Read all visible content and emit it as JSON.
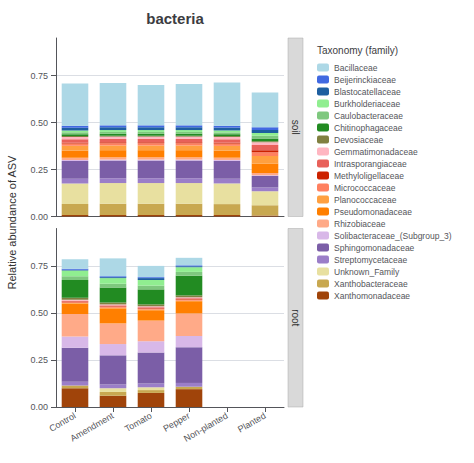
{
  "chart_data": [
    {
      "type": "bar",
      "title": "bacteria",
      "subtitle": "soil",
      "ylabel": "Relative abundance of ASV",
      "annotations": [
        "Taxonomy (family)"
      ],
      "legend": "right",
      "stacked": true,
      "grid": true,
      "tick_labels": "y",
      "categories": [
        "Control",
        "Amendment",
        "Tomato",
        "Pepper",
        "Non-planted",
        "Planted"
      ],
      "ylim": [
        0,
        0.95
      ],
      "yticks": [
        {
          "value": 0,
          "label": "0.00"
        },
        0.25,
        {
          "value": 0.5,
          "label": "0.50"
        },
        0.75
      ],
      "series": [
        {
          "name": "Bacillaceae",
          "color": "#ADD8E6",
          "values": [
            0.225,
            0.225,
            0.215,
            0.22,
            0.23,
            0.185
          ]
        },
        {
          "name": "Beijerinckiaceae",
          "color": "#4169E1",
          "values": [
            0.01,
            0.01,
            0.01,
            0.01,
            0.01,
            0.015
          ]
        },
        {
          "name": "Blastocatellaceae",
          "color": "#1E5FA0",
          "values": [
            0.015,
            0.015,
            0.015,
            0.015,
            0.015,
            0.015
          ]
        },
        {
          "name": "Burkholderiaceae",
          "color": "#90EE90",
          "values": [
            0.01,
            0.01,
            0.01,
            0.01,
            0.01,
            0.015
          ]
        },
        {
          "name": "Caulobacteraceae",
          "color": "#7EC87E",
          "values": [
            0.01,
            0.01,
            0.01,
            0.01,
            0.01,
            0.015
          ]
        },
        {
          "name": "Chitinophagaceae",
          "color": "#228B22",
          "values": [
            0.01,
            0.01,
            0.01,
            0.01,
            0.01,
            0.015
          ]
        },
        {
          "name": "Devosiaceae",
          "color": "#808040",
          "values": [
            0.005,
            0.005,
            0.005,
            0.005,
            0.005,
            0.005
          ]
        },
        {
          "name": "Gemmatimonadaceae",
          "color": "#FFB6C1",
          "values": [
            0.012,
            0.012,
            0.012,
            0.012,
            0.012,
            0.015
          ]
        },
        {
          "name": "Intrasporangiaceae",
          "color": "#E8615A",
          "values": [
            0.018,
            0.018,
            0.018,
            0.018,
            0.018,
            0.028
          ]
        },
        {
          "name": "Methyloligellaceae",
          "color": "#CC2200",
          "values": [
            0.005,
            0.005,
            0.005,
            0.005,
            0.005,
            0.01
          ]
        },
        {
          "name": "Micrococcaceae",
          "color": "#FF8060",
          "values": [
            0.012,
            0.012,
            0.012,
            0.012,
            0.012,
            0.02
          ]
        },
        {
          "name": "Planococcaceae",
          "color": "#FFA040",
          "values": [
            0.025,
            0.025,
            0.025,
            0.025,
            0.025,
            0.04
          ]
        },
        {
          "name": "Pseudomonadaceae",
          "color": "#FF7F00",
          "values": [
            0.038,
            0.038,
            0.038,
            0.038,
            0.038,
            0.05
          ]
        },
        {
          "name": "Rhizobiaceae",
          "color": "#FFAA88",
          "values": [
            0.012,
            0.012,
            0.012,
            0.012,
            0.012,
            0.012
          ]
        },
        {
          "name": "Solibacteraceae_(Subgroup_3)",
          "color": "#D8B8E8",
          "values": [
            0.005,
            0.005,
            0.005,
            0.005,
            0.005,
            0.005
          ]
        },
        {
          "name": "Sphingomonadaceae",
          "color": "#7B5EA7",
          "values": [
            0.095,
            0.095,
            0.095,
            0.095,
            0.095,
            0.06
          ]
        },
        {
          "name": "Streptomycetaceae",
          "color": "#9B7EC8",
          "values": [
            0.025,
            0.025,
            0.025,
            0.025,
            0.025,
            0.02
          ]
        },
        {
          "name": "Unknown_Family",
          "color": "#E8E0A0",
          "values": [
            0.11,
            0.11,
            0.11,
            0.11,
            0.11,
            0.075
          ]
        },
        {
          "name": "Xanthobacteraceae",
          "color": "#C8A850",
          "values": [
            0.058,
            0.06,
            0.06,
            0.06,
            0.058,
            0.055
          ]
        },
        {
          "name": "Xanthomonadaceae",
          "color": "#A0440A",
          "values": [
            0.008,
            0.008,
            0.008,
            0.008,
            0.008,
            0.005
          ]
        }
      ]
    },
    {
      "type": "bar",
      "subtitle": "root",
      "stacked": true,
      "grid": true,
      "categories": [
        "Control",
        "Amendment",
        "Tomato",
        "Pepper",
        "Non-planted",
        "Planted"
      ],
      "ylim": [
        0,
        0.95
      ],
      "yticks": [
        {
          "value": 0,
          "label": "0.00"
        },
        0.25,
        {
          "value": 0.5,
          "label": "0.50"
        },
        0.75
      ],
      "series": [
        {
          "name": "Bacillaceae",
          "color": "#ADD8E6",
          "values": [
            0.05,
            0.095,
            0.06,
            0.04,
            0.0,
            0.0
          ]
        },
        {
          "name": "Beijerinckiaceae",
          "color": "#4169E1",
          "values": [
            0.005,
            0.005,
            0.005,
            0.005,
            0.0,
            0.0
          ]
        },
        {
          "name": "Blastocatellaceae",
          "color": "#1E5FA0",
          "values": [
            0.005,
            0.005,
            0.01,
            0.005,
            0.0,
            0.0
          ]
        },
        {
          "name": "Burkholderiaceae",
          "color": "#90EE90",
          "values": [
            0.03,
            0.03,
            0.03,
            0.025,
            0.0,
            0.0
          ]
        },
        {
          "name": "Caulobacteraceae",
          "color": "#7EC87E",
          "values": [
            0.02,
            0.02,
            0.02,
            0.02,
            0.0,
            0.0
          ]
        },
        {
          "name": "Chitinophagaceae",
          "color": "#228B22",
          "values": [
            0.095,
            0.08,
            0.08,
            0.105,
            0.0,
            0.0
          ]
        },
        {
          "name": "Devosiaceae",
          "color": "#808040",
          "values": [
            0.01,
            0.01,
            0.01,
            0.01,
            0.0,
            0.0
          ]
        },
        {
          "name": "Gemmatimonadaceae",
          "color": "#FFB6C1",
          "values": [
            0.005,
            0.005,
            0.005,
            0.005,
            0.0,
            0.0
          ]
        },
        {
          "name": "Intrasporangiaceae",
          "color": "#E8615A",
          "values": [
            0.005,
            0.005,
            0.005,
            0.005,
            0.0,
            0.0
          ]
        },
        {
          "name": "Methyloligellaceae",
          "color": "#CC2200",
          "values": [
            0.003,
            0.003,
            0.003,
            0.003,
            0.0,
            0.0
          ]
        },
        {
          "name": "Micrococcaceae",
          "color": "#FF8060",
          "values": [
            0.005,
            0.005,
            0.005,
            0.005,
            0.0,
            0.0
          ]
        },
        {
          "name": "Planococcaceae",
          "color": "#FFA040",
          "values": [
            0.003,
            0.003,
            0.003,
            0.003,
            0.0,
            0.0
          ]
        },
        {
          "name": "Pseudomonadaceae",
          "color": "#FF7F00",
          "values": [
            0.055,
            0.08,
            0.055,
            0.065,
            0.0,
            0.0
          ]
        },
        {
          "name": "Rhizobiaceae",
          "color": "#FFAA88",
          "values": [
            0.12,
            0.11,
            0.11,
            0.12,
            0.0,
            0.0
          ]
        },
        {
          "name": "Solibacteraceae_(Subgroup_3)",
          "color": "#D8B8E8",
          "values": [
            0.06,
            0.06,
            0.06,
            0.06,
            0.0,
            0.0
          ]
        },
        {
          "name": "Sphingomonadaceae",
          "color": "#7B5EA7",
          "values": [
            0.18,
            0.155,
            0.165,
            0.19,
            0.0,
            0.0
          ]
        },
        {
          "name": "Streptomycetaceae",
          "color": "#9B7EC8",
          "values": [
            0.02,
            0.02,
            0.02,
            0.02,
            0.0,
            0.0
          ]
        },
        {
          "name": "Unknown_Family",
          "color": "#E8E0A0",
          "values": [
            0.0,
            0.02,
            0.015,
            0.0,
            0.0,
            0.0
          ]
        },
        {
          "name": "Xanthobacteraceae",
          "color": "#C8A850",
          "values": [
            0.015,
            0.02,
            0.015,
            0.013,
            0.0,
            0.0
          ]
        },
        {
          "name": "Xanthomonadaceae",
          "color": "#A0440A",
          "values": [
            0.1,
            0.06,
            0.075,
            0.095,
            0.0,
            0.0
          ]
        }
      ]
    }
  ]
}
